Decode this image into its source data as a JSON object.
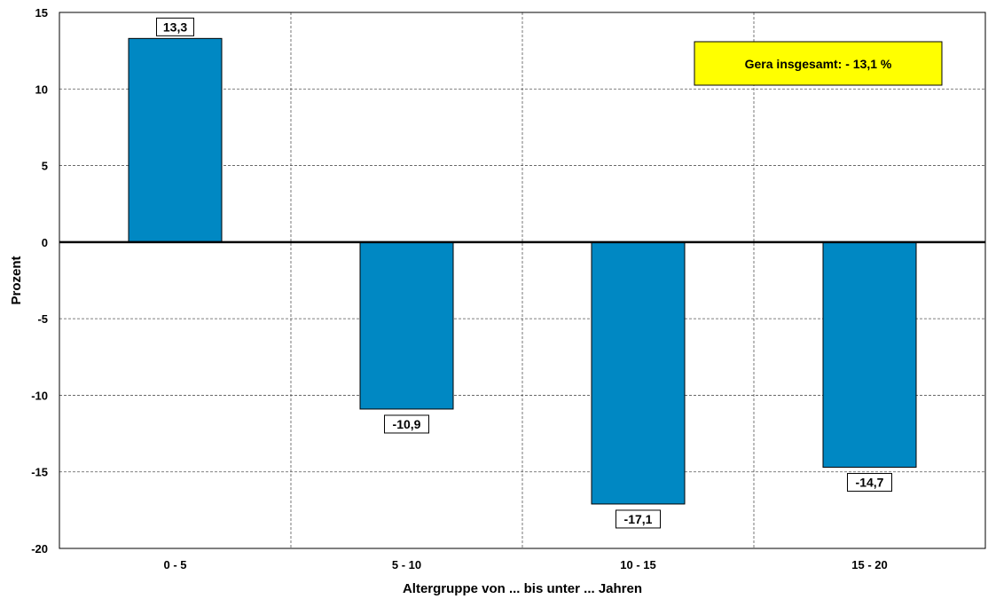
{
  "chart_data": {
    "type": "bar",
    "categories": [
      "0 - 5",
      "5 - 10",
      "10 - 15",
      "15 - 20"
    ],
    "values": [
      13.3,
      -10.9,
      -17.1,
      -14.7
    ],
    "data_labels": [
      "13,3",
      "-10,9",
      "-17,1",
      "-14,7"
    ],
    "xlabel": "Altergruppe von ... bis unter ... Jahren",
    "ylabel": "Prozent",
    "ylim": [
      -20,
      15
    ],
    "yticks": [
      15,
      10,
      5,
      0,
      -5,
      -10,
      -15,
      -20
    ],
    "ytick_labels": [
      "15",
      "10",
      "5",
      "0",
      "-5",
      "-10",
      "-15",
      "-20"
    ],
    "grid": true,
    "bar_color": "#0088C3",
    "annotation": {
      "text": "Gera insgesamt: - 13,1 %",
      "background": "#FFFF00",
      "position": "top-right"
    }
  }
}
